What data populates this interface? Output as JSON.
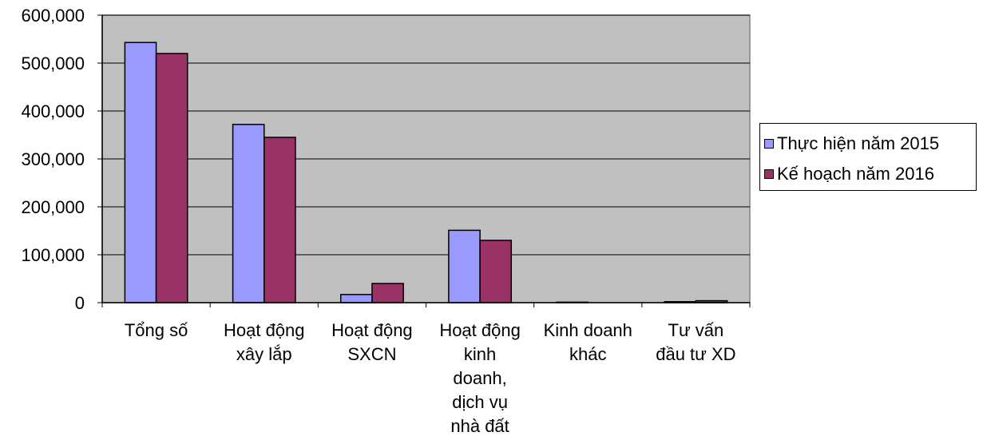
{
  "chart_data": {
    "type": "bar",
    "categories": [
      [
        "Tổng số"
      ],
      [
        "Hoạt động",
        "xây lắp"
      ],
      [
        "Hoạt động",
        "SXCN"
      ],
      [
        "Hoạt động",
        "kinh",
        "doanh,",
        "dịch vụ",
        "nhà đất"
      ],
      [
        "Kinh doanh",
        "khác"
      ],
      [
        "Tư vấn",
        "đầu tư XD"
      ]
    ],
    "series": [
      {
        "name": "Thực hiện năm 2015",
        "color": "#9999ff",
        "values": [
          543000,
          372000,
          17000,
          151000,
          1000,
          2000
        ]
      },
      {
        "name": "Kế hoạch năm 2016",
        "color": "#993366",
        "values": [
          520000,
          345000,
          40000,
          130000,
          0,
          4000
        ]
      }
    ],
    "y_ticks": [
      "0",
      "100,000",
      "200,000",
      "300,000",
      "400,000",
      "500,000",
      "600,000"
    ],
    "ylim": [
      0,
      600000
    ],
    "plot_background": "#c0c0c0",
    "grid": true,
    "legend_position": "right"
  }
}
